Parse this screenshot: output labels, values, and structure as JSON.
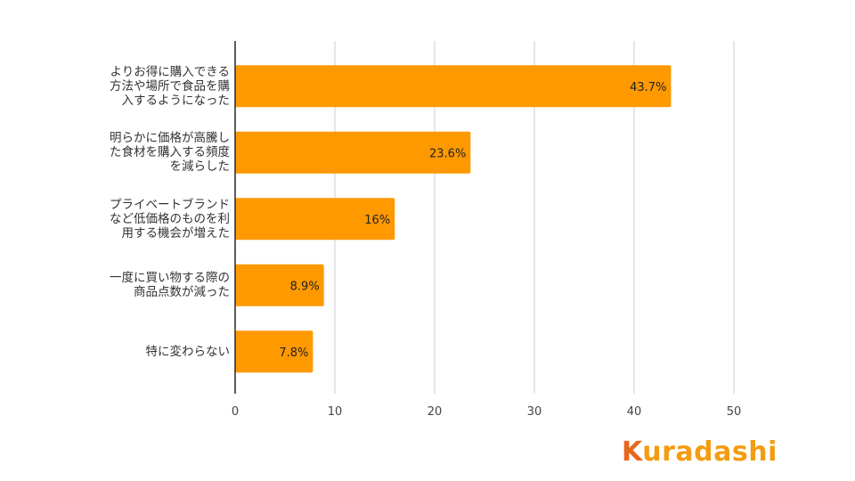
{
  "chart_data": {
    "type": "bar",
    "orientation": "horizontal",
    "categories": [
      "よりお得に購入できる方法や場所で食品を購入するようになった",
      "明らかに価格が高騰した食材を購入する頻度を減らした",
      "プライベートブランドなど低価格のものを利用する機会が増えた",
      "一度に買い物する際の商品点数が減った",
      "特に変わらない"
    ],
    "values": [
      43.7,
      23.6,
      16,
      8.9,
      7.8
    ],
    "data_labels": [
      "43.7%",
      "23.6%",
      "16%",
      "8.9%",
      "7.8%"
    ],
    "xlim": [
      0,
      50
    ],
    "xticks": [
      "0",
      "10",
      "20",
      "30",
      "40",
      "50"
    ],
    "grid": true,
    "legend": "none",
    "bar_color": "#ff9900",
    "grid_color": "#cccccc",
    "axis_color": "#333333"
  },
  "brand": {
    "logo_k": "K",
    "logo_rest": "uradashi",
    "logo_k_color": "#e8671e",
    "logo_rest_color": "#f39c12"
  }
}
